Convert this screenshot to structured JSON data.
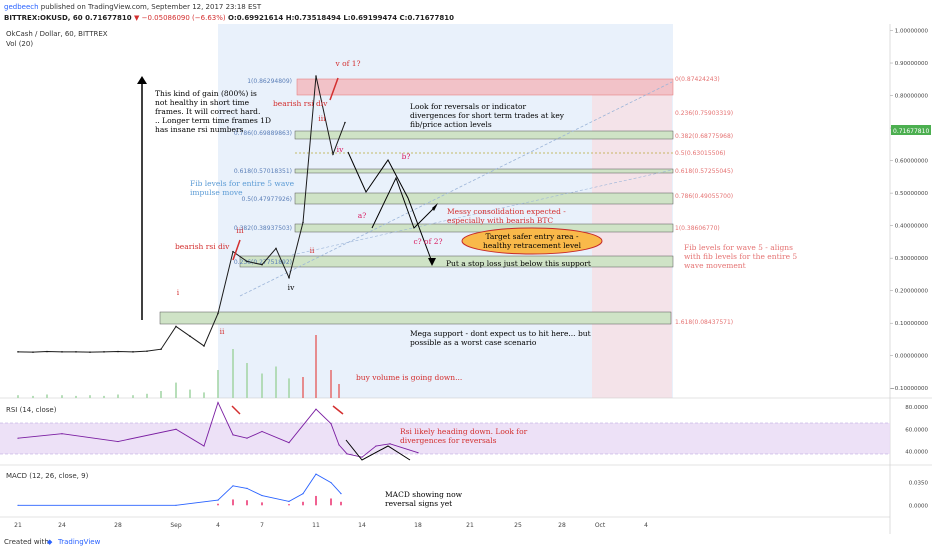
{
  "header": {
    "line1_user": "gedbeech",
    "line1_rest": "published on TradingView.com, September 12, 2017 23:18 EST",
    "line2_symbol": "BITTREX:OKUSD, 60",
    "line2_last": "0.71677810",
    "line2_change": "▼ −0.05086090 (−6.63%)",
    "line2_ohlc": "O:0.69921614 H:0.73518494 L:0.69199474 C:0.71677810"
  },
  "chart_title": "OkCash / Dollar, 60, BITTREX",
  "vol_label": "Vol (20)",
  "rsi_label": "RSI (14, close)",
  "macd_label": "MACD (12, 26, close, 9)",
  "footer": {
    "created_with": "Created with",
    "brand": "TradingView"
  },
  "colors": {
    "price_line": "#1a1a1a",
    "fib_box_green": "#cfe3c6",
    "fib_box_red": "#f2c2c8",
    "annotation_red": "#d32f2f",
    "annotation_magenta": "#d81b60",
    "annotation_blue": "#5b9bd5",
    "rsi_line": "#7b1fa2",
    "macd_line": "#2962ff",
    "signal_line": "#ff6d00",
    "last_price_tag": "#4caf50",
    "target_ellipse": "#f9b94a"
  },
  "chart_data": [
    {
      "type": "line",
      "title": "OkCash / Dollar, 60, BITTREX",
      "x_ticks": [
        "21",
        "24",
        "28",
        "Sep",
        "4",
        "7",
        "11",
        "14",
        "18",
        "21",
        "25",
        "28",
        "Oct",
        "4"
      ],
      "y_ticks": [
        "1.00000000",
        "0.90000000",
        "0.80000000",
        "0.70000000",
        "0.60000000",
        "0.50000000",
        "0.40000000",
        "0.30000000",
        "0.20000000",
        "0.10000000",
        "0.00000000",
        "−0.10000000"
      ],
      "ylim": [
        -0.13,
        1.02
      ],
      "last_price": "0.71677810",
      "series": [
        {
          "x": [
            "21",
            "22",
            "23",
            "24",
            "25",
            "26",
            "27",
            "28",
            "29",
            "30",
            "31",
            "Sep",
            "2",
            "3",
            "4",
            "5",
            "6",
            "7",
            "8",
            "9",
            "10",
            "11",
            "12",
            "12"
          ],
          "values": [
            0.012,
            0.011,
            0.013,
            0.012,
            0.012,
            0.011,
            0.012,
            0.013,
            0.012,
            0.014,
            0.02,
            0.09,
            0.06,
            0.03,
            0.13,
            0.32,
            0.29,
            0.28,
            0.33,
            0.24,
            0.41,
            0.86,
            0.62,
            0.717
          ]
        }
      ],
      "fib_levels_left": [
        "1(0.86294809)",
        "0.786(0.69889863)",
        "0.618(0.57018351)",
        "0.5(0.47977926)",
        "0.382(0.38937503)",
        "0.236(0.27751892)"
      ],
      "fib_levels_right": [
        "0(0.87424243)",
        "0.236(0.75903319)",
        "0.382(0.68775968)",
        "0.5(0.63015506)",
        "0.618(0.57255045)",
        "0.786(0.49055700)",
        "1(0.38606770)",
        "1.618(0.08437571)"
      ],
      "wave_labels": [
        "i",
        "ii",
        "iii",
        "iv",
        "v of 1?",
        "iii",
        "iv",
        "ii",
        "a?",
        "b?",
        "c? of 2?"
      ],
      "annotations": [
        "This kind of gain (800%) is not healthy in short time frames. It will correct hard. .. Longer term time frames 1D has insane rsi numbers",
        "bearish rsi div",
        "bearish rsi div",
        "Look for reversals or indicator divergences for short term trades at key fib/price action levels",
        "Fib levels for entire 5 wave impulse move",
        "Messy consolidation expected - especially with bearish BTC",
        "Target safer entry area - healthy retracement level",
        "Put a stop loss just below this support",
        "Fib levels for wave 5 - aligns with fib levels for the entire 5 wave movement",
        "Mega support - dont expect us to hit here... but possible as a worst case scenario",
        "buy volume is going down..."
      ]
    },
    {
      "type": "line",
      "title": "RSI (14, close)",
      "y_ticks": [
        "80.0000",
        "60.0000",
        "40.0000"
      ],
      "ylim": [
        28,
        88
      ],
      "band": [
        30,
        70
      ],
      "series": [
        {
          "x": [
            "21",
            "24",
            "28",
            "Sep",
            "3",
            "4",
            "5",
            "6",
            "7",
            "9",
            "11",
            "12",
            "12",
            "13",
            "14",
            "15",
            "16",
            "18"
          ],
          "values": [
            52,
            56,
            49,
            60,
            45,
            84,
            55,
            52,
            58,
            48,
            78,
            65,
            46,
            38,
            35,
            45,
            47,
            39
          ]
        }
      ],
      "annotation": "Rsi likely heading down. Look for divergences for reversals"
    },
    {
      "type": "line",
      "title": "MACD (12, 26, close, 9)",
      "y_ticks": [
        "0.0350",
        "0.0000"
      ],
      "ylim": [
        -0.018,
        0.062
      ],
      "series": [
        {
          "name": "",
          "x": [
            "21",
            "Sep",
            "4",
            "5",
            "6",
            "7",
            "9",
            "10",
            "11",
            "12",
            "12"
          ],
          "values": [
            0.0,
            0.0,
            0.008,
            0.03,
            0.026,
            0.015,
            0.006,
            0.018,
            0.048,
            0.035,
            0.018
          ]
        }
      ],
      "annotation": "MACD showing now reversal signs yet"
    }
  ]
}
